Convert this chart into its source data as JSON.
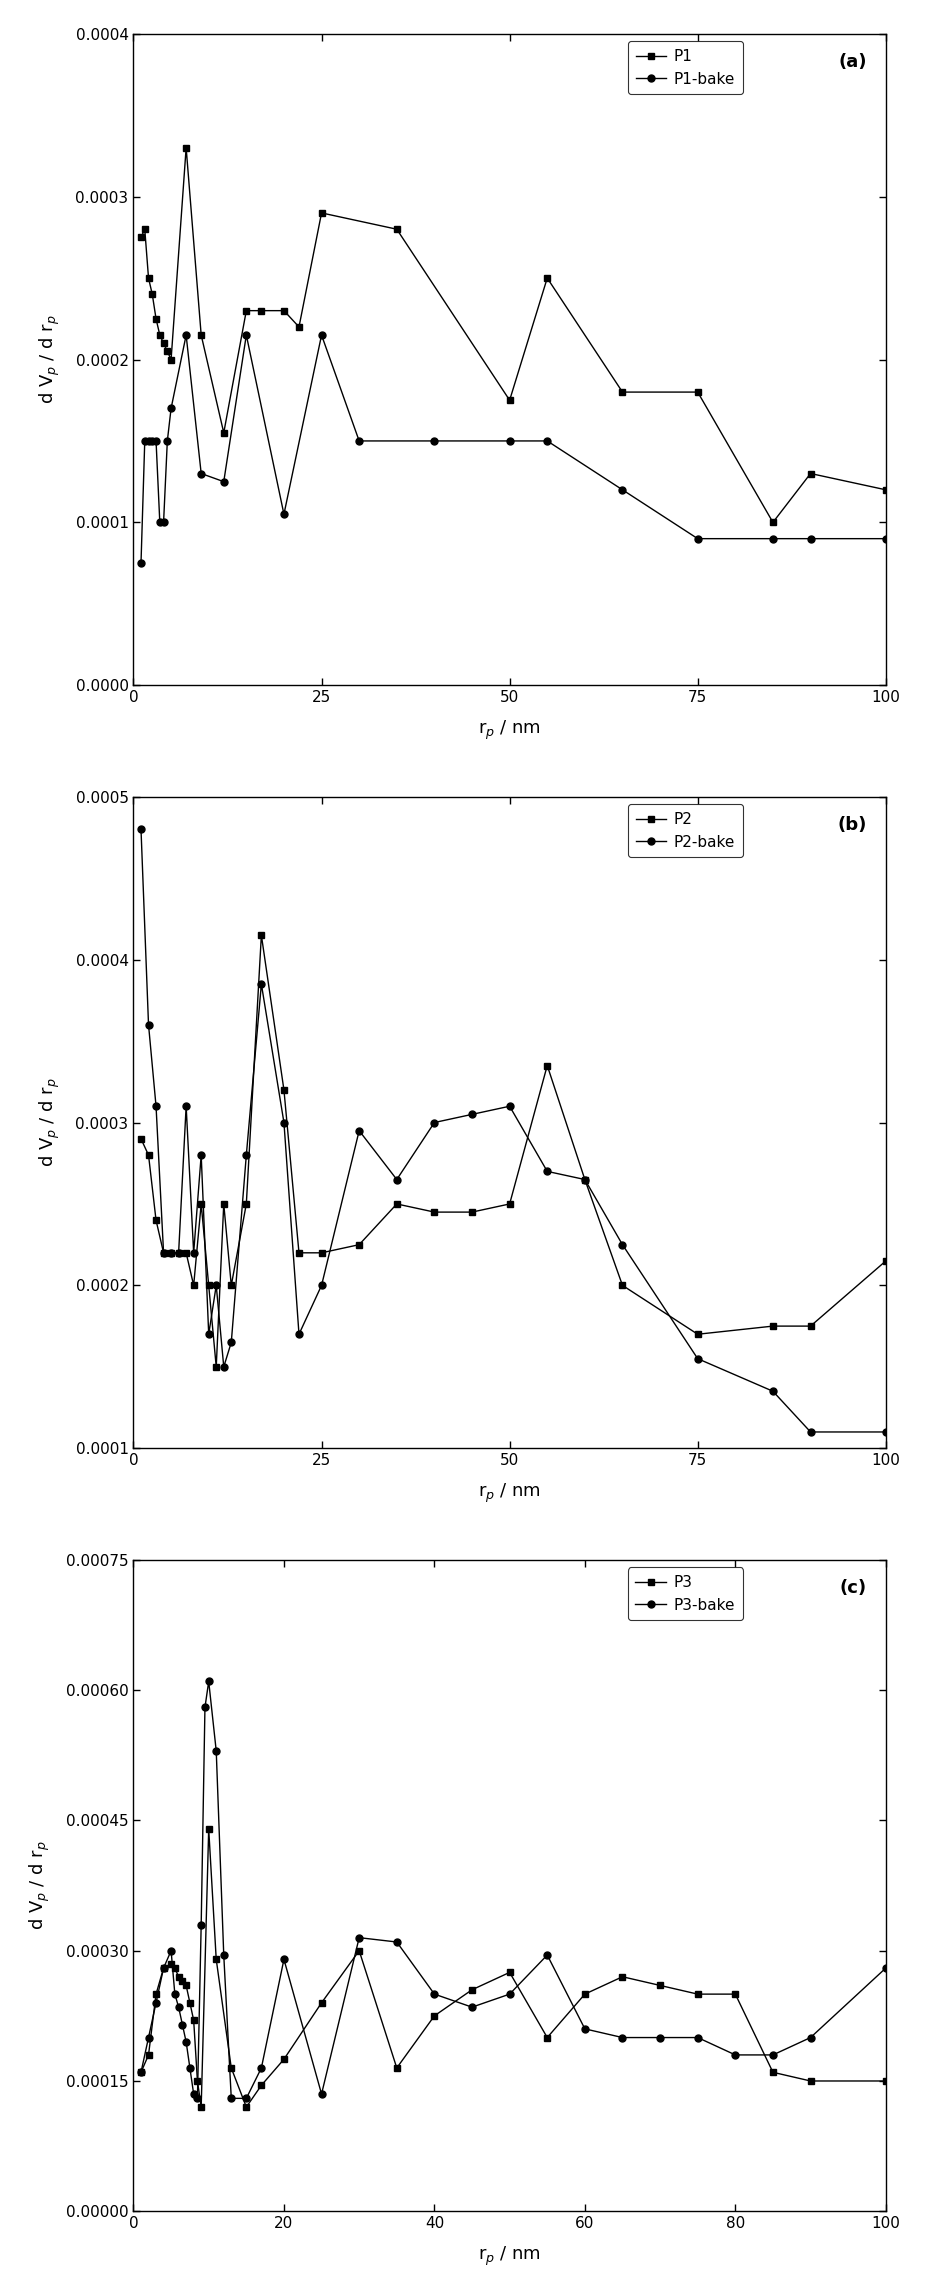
{
  "panel_a": {
    "label": "(a)",
    "P1_x": [
      1,
      1.5,
      2,
      2.5,
      3,
      3.5,
      4,
      4.5,
      5,
      7,
      9,
      12,
      15,
      17,
      20,
      22,
      25,
      35,
      50,
      55,
      65,
      75,
      85,
      90,
      100
    ],
    "P1_y": [
      0.000275,
      0.00028,
      0.00025,
      0.00024,
      0.000225,
      0.000215,
      0.00021,
      0.000205,
      0.0002,
      0.00033,
      0.000215,
      0.000155,
      0.00023,
      0.00023,
      0.00023,
      0.00022,
      0.00029,
      0.00028,
      0.000175,
      0.00025,
      0.00018,
      0.00018,
      0.0001,
      0.00013,
      0.00012
    ],
    "P1bake_x": [
      1,
      1.5,
      2,
      2.5,
      3,
      3.5,
      4,
      4.5,
      5,
      7,
      9,
      12,
      15,
      20,
      25,
      30,
      40,
      50,
      55,
      65,
      75,
      85,
      90,
      100
    ],
    "P1bake_y": [
      7.5e-05,
      0.00015,
      0.00015,
      0.00015,
      0.00015,
      0.0001,
      0.0001,
      0.00015,
      0.00017,
      0.000215,
      0.00013,
      0.000125,
      0.000215,
      0.000105,
      0.000215,
      0.00015,
      0.00015,
      0.00015,
      0.00015,
      0.00012,
      9e-05,
      9e-05,
      9e-05,
      9e-05
    ],
    "ylabel": "d V$_p$ / d r$_p$",
    "xlabel": "r$_p$ / nm",
    "ylim": [
      0.0,
      0.0004
    ],
    "xlim": [
      0,
      100
    ],
    "yticks": [
      0.0,
      0.0001,
      0.0002,
      0.0003,
      0.0004
    ],
    "xticks": [
      0,
      25,
      50,
      75,
      100
    ],
    "legend1": "P1",
    "legend2": "P1-bake"
  },
  "panel_b": {
    "label": "(b)",
    "P2_x": [
      1,
      2,
      3,
      4,
      5,
      6,
      7,
      8,
      9,
      10,
      11,
      12,
      13,
      15,
      17,
      20,
      22,
      25,
      30,
      35,
      40,
      45,
      50,
      55,
      60,
      65,
      75,
      85,
      90,
      100
    ],
    "P2_y": [
      0.00029,
      0.00028,
      0.00024,
      0.00022,
      0.00022,
      0.00022,
      0.00022,
      0.0002,
      0.00025,
      0.0002,
      0.00015,
      0.00025,
      0.0002,
      0.00025,
      0.000415,
      0.00032,
      0.00022,
      0.00022,
      0.000225,
      0.00025,
      0.000245,
      0.000245,
      0.00025,
      0.000335,
      0.000265,
      0.0002,
      0.00017,
      0.000175,
      0.000175,
      0.000215
    ],
    "P2bake_x": [
      1,
      2,
      3,
      4,
      5,
      6,
      7,
      8,
      9,
      10,
      11,
      12,
      13,
      15,
      17,
      20,
      22,
      25,
      30,
      35,
      40,
      45,
      50,
      55,
      60,
      65,
      75,
      85,
      90,
      100
    ],
    "P2bake_y": [
      0.00048,
      0.00036,
      0.00031,
      0.00022,
      0.00022,
      0.00022,
      0.00031,
      0.00022,
      0.00028,
      0.00017,
      0.0002,
      0.00015,
      0.000165,
      0.00028,
      0.000385,
      0.0003,
      0.00017,
      0.0002,
      0.000295,
      0.000265,
      0.0003,
      0.000305,
      0.00031,
      0.00027,
      0.000265,
      0.000225,
      0.000155,
      0.000135,
      0.00011,
      0.00011
    ],
    "ylabel": "d V$_p$ / d r$_p$",
    "xlabel": "r$_p$ / nm",
    "ylim": [
      0.0001,
      0.0005
    ],
    "xlim": [
      0,
      100
    ],
    "yticks": [
      0.0001,
      0.0002,
      0.0003,
      0.0004,
      0.0005
    ],
    "xticks": [
      0,
      25,
      50,
      75,
      100
    ],
    "legend1": "P2",
    "legend2": "P2-bake"
  },
  "panel_c": {
    "label": "(c)",
    "P3_x": [
      1,
      2,
      3,
      4,
      5,
      5.5,
      6,
      6.5,
      7,
      7.5,
      8,
      8.5,
      9,
      10,
      11,
      13,
      15,
      17,
      20,
      25,
      30,
      35,
      40,
      45,
      50,
      55,
      60,
      65,
      70,
      75,
      80,
      85,
      90,
      100
    ],
    "P3_y": [
      0.00016,
      0.00018,
      0.00025,
      0.00028,
      0.000285,
      0.00028,
      0.00027,
      0.000265,
      0.00026,
      0.00024,
      0.00022,
      0.00015,
      0.00012,
      0.00044,
      0.00029,
      0.000165,
      0.00012,
      0.000145,
      0.000175,
      0.00024,
      0.0003,
      0.000165,
      0.000225,
      0.000255,
      0.000275,
      0.0002,
      0.00025,
      0.00027,
      0.00026,
      0.00025,
      0.00025,
      0.00016,
      0.00015,
      0.00015
    ],
    "P3bake_x": [
      1,
      2,
      3,
      4,
      5,
      5.5,
      6,
      6.5,
      7,
      7.5,
      8,
      8.5,
      9,
      9.5,
      10,
      11,
      12,
      13,
      15,
      17,
      20,
      25,
      30,
      35,
      40,
      45,
      50,
      55,
      60,
      65,
      70,
      75,
      80,
      85,
      90,
      100
    ],
    "P3bake_y": [
      0.00016,
      0.0002,
      0.00024,
      0.00028,
      0.0003,
      0.00025,
      0.000235,
      0.000215,
      0.000195,
      0.000165,
      0.000135,
      0.00013,
      0.00033,
      0.00058,
      0.00061,
      0.00053,
      0.000295,
      0.00013,
      0.00013,
      0.000165,
      0.00029,
      0.000135,
      0.000315,
      0.00031,
      0.00025,
      0.000235,
      0.00025,
      0.000295,
      0.00021,
      0.0002,
      0.0002,
      0.0002,
      0.00018,
      0.00018,
      0.0002,
      0.00028
    ],
    "ylabel": "d V$_p$ / d r$_p$",
    "xlabel": "r$_p$ / nm",
    "ylim": [
      0.0,
      0.00075
    ],
    "xlim": [
      0,
      100
    ],
    "yticks": [
      0.0,
      0.00015,
      0.0003,
      0.00045,
      0.0006,
      0.00075
    ],
    "xticks": [
      0,
      20,
      40,
      60,
      80,
      100
    ],
    "legend1": "P3",
    "legend2": "P3-bake"
  },
  "line_color": "#000000",
  "marker_square": "s",
  "marker_circle": "o",
  "markersize": 5,
  "linewidth": 1.0,
  "bg_color": "#ffffff",
  "tick_fontsize": 11,
  "label_fontsize": 13,
  "legend_fontsize": 11
}
